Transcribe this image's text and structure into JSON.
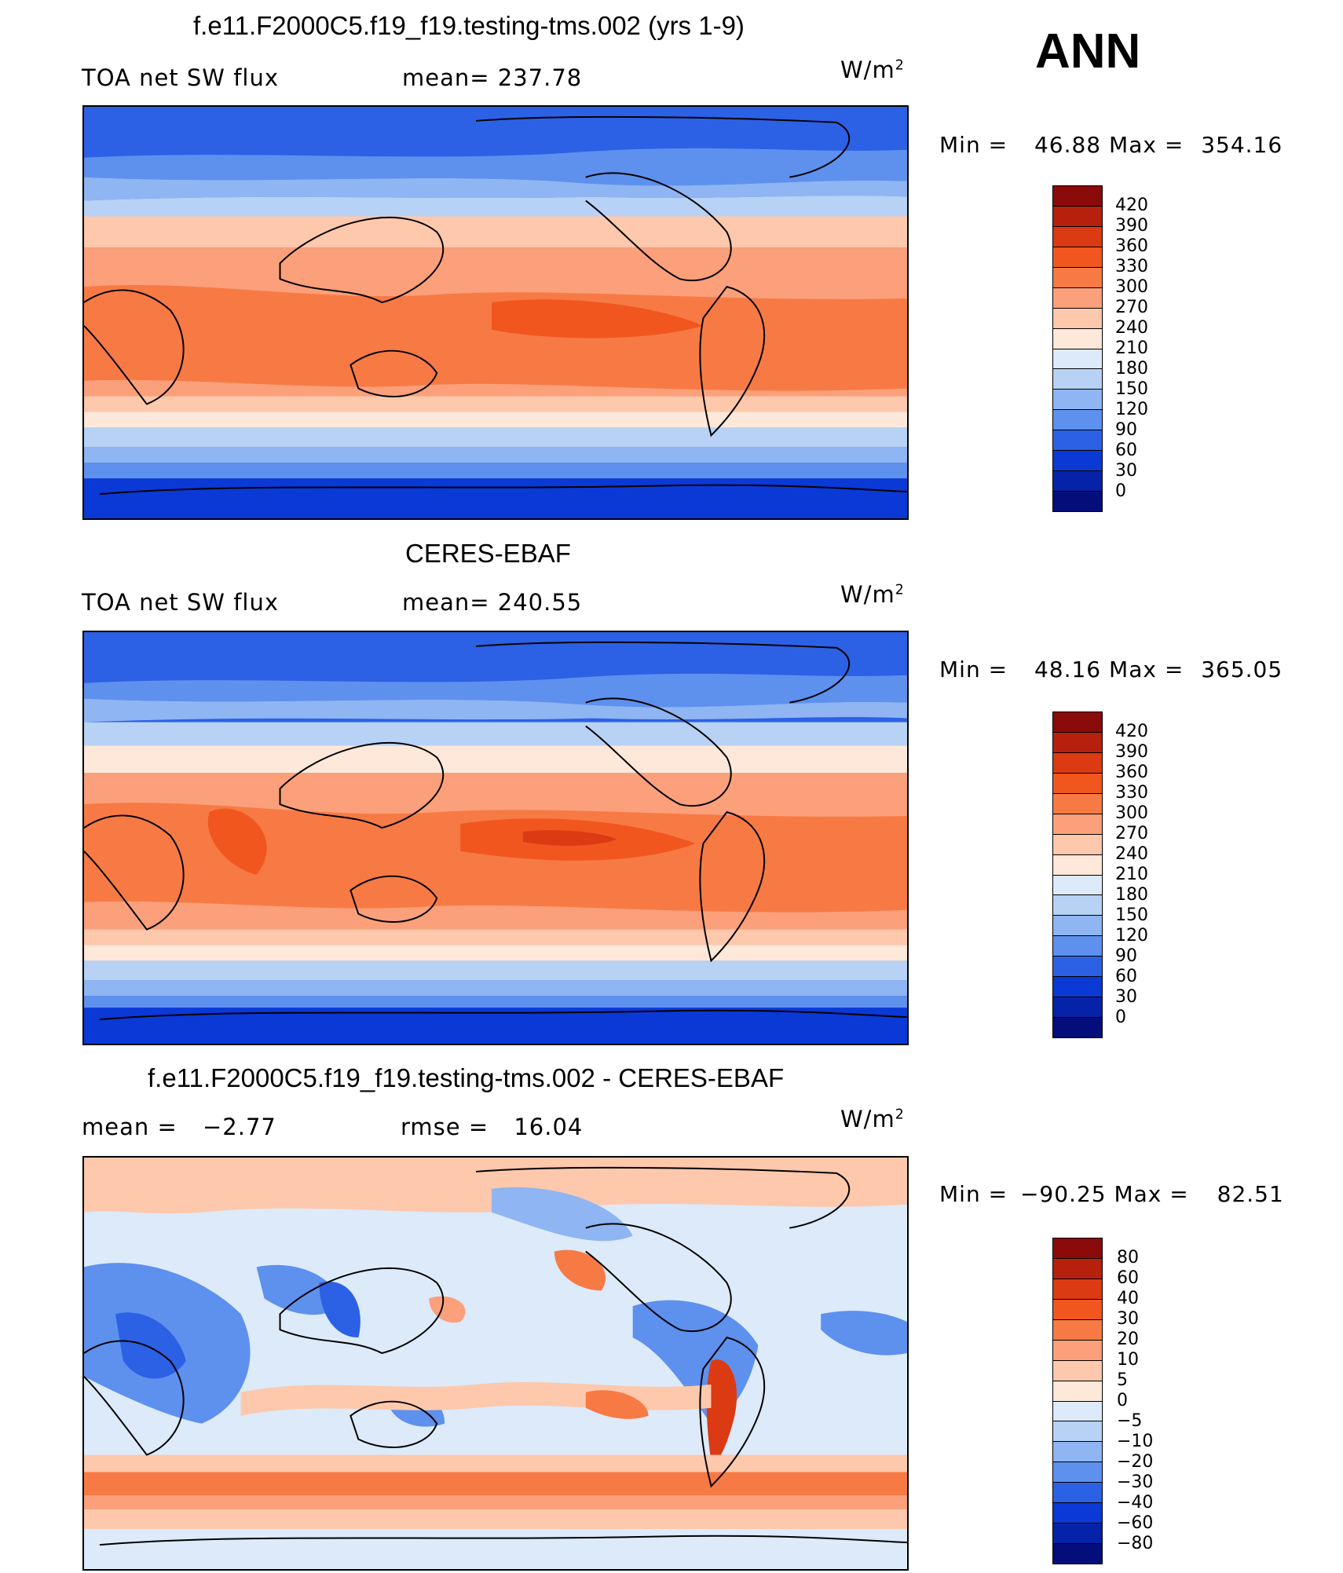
{
  "header": {
    "season": "ANN"
  },
  "panels": [
    {
      "title": "f.e11.F2000C5.f19_f19.testing-tms.002 (yrs 1-9)",
      "left_label": "TOA net SW flux",
      "stat_label": "mean=",
      "stat_value": "237.78",
      "units": "W/m",
      "units_sup": "2",
      "min_label": "Min =",
      "min_value": "46.88",
      "max_label": "Max =",
      "max_value": "354.16",
      "colorbar": {
        "ticks": [
          "420",
          "390",
          "360",
          "330",
          "300",
          "270",
          "240",
          "210",
          "180",
          "150",
          "120",
          "90",
          "60",
          "30",
          "0"
        ],
        "colors": [
          "#8b0a0a",
          "#b8200e",
          "#dc3a12",
          "#f2561f",
          "#f77a45",
          "#fba07a",
          "#fdc8ac",
          "#fde8d9",
          "#dceafa",
          "#b7d2f5",
          "#8fb5f2",
          "#5e90ee",
          "#2c61e5",
          "#0a39d6",
          "#0622a8",
          "#040e7a"
        ]
      }
    },
    {
      "title": "CERES-EBAF",
      "left_label": "TOA net SW flux",
      "stat_label": "mean=",
      "stat_value": "240.55",
      "units": "W/m",
      "units_sup": "2",
      "min_label": "Min =",
      "min_value": "48.16",
      "max_label": "Max =",
      "max_value": "365.05",
      "colorbar": {
        "ticks": [
          "420",
          "390",
          "360",
          "330",
          "300",
          "270",
          "240",
          "210",
          "180",
          "150",
          "120",
          "90",
          "60",
          "30",
          "0"
        ],
        "colors": [
          "#8b0a0a",
          "#b8200e",
          "#dc3a12",
          "#f2561f",
          "#f77a45",
          "#fba07a",
          "#fdc8ac",
          "#fde8d9",
          "#dceafa",
          "#b7d2f5",
          "#8fb5f2",
          "#5e90ee",
          "#2c61e5",
          "#0a39d6",
          "#0622a8",
          "#040e7a"
        ]
      }
    },
    {
      "title": "f.e11.F2000C5.f19_f19.testing-tms.002 - CERES-EBAF",
      "left_label": "mean =",
      "left_value": "−2.77",
      "stat_label": "rmse =",
      "stat_value": "16.04",
      "units": "W/m",
      "units_sup": "2",
      "min_label": "Min =",
      "min_value": "−90.25",
      "max_label": "Max =",
      "max_value": "82.51",
      "colorbar": {
        "ticks": [
          "80",
          "60",
          "40",
          "30",
          "20",
          "10",
          "5",
          "0",
          "−5",
          "−10",
          "−20",
          "−30",
          "−40",
          "−60",
          "−80"
        ],
        "colors": [
          "#8b0a0a",
          "#b8200e",
          "#dc3a12",
          "#f2561f",
          "#f77a45",
          "#fba07a",
          "#fdc8ac",
          "#fde8d9",
          "#dceafa",
          "#b7d2f5",
          "#8fb5f2",
          "#5e90ee",
          "#2c61e5",
          "#0a39d6",
          "#0622a8",
          "#040e7a"
        ]
      }
    }
  ]
}
